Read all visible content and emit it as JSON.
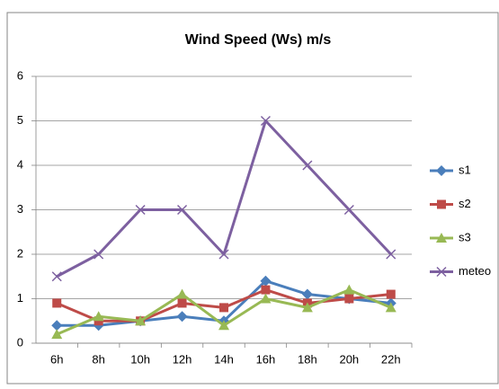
{
  "chart_data": {
    "type": "line",
    "title": "Wind Speed (Ws) m/s",
    "categories": [
      "6h",
      "8h",
      "10h",
      "12h",
      "14h",
      "16h",
      "18h",
      "20h",
      "22h"
    ],
    "series": [
      {
        "name": "s1",
        "color": "#4a7ebb",
        "marker": "diamond",
        "values": [
          0.4,
          0.4,
          0.5,
          0.6,
          0.5,
          1.4,
          1.1,
          1.0,
          0.9
        ]
      },
      {
        "name": "s2",
        "color": "#be4b48",
        "marker": "square",
        "values": [
          0.9,
          0.5,
          0.5,
          0.9,
          0.8,
          1.2,
          0.9,
          1.0,
          1.1
        ]
      },
      {
        "name": "s3",
        "color": "#98b954",
        "marker": "triangle",
        "values": [
          0.2,
          0.6,
          0.5,
          1.1,
          0.4,
          1.0,
          0.8,
          1.2,
          0.8
        ]
      },
      {
        "name": "meteo",
        "color": "#7d60a0",
        "marker": "x",
        "values": [
          1.5,
          2,
          3,
          3,
          2,
          5,
          4,
          3,
          2
        ]
      }
    ],
    "ylim": [
      0,
      6
    ],
    "yticks": [
      0,
      1,
      2,
      3,
      4,
      5,
      6
    ],
    "grid": true,
    "legend": "right"
  }
}
